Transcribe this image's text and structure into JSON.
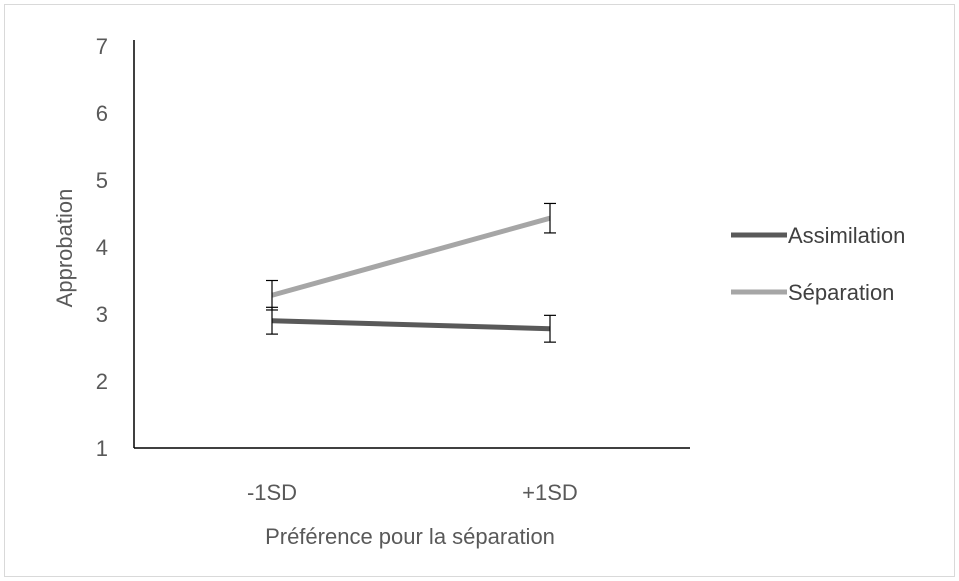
{
  "chart_data": {
    "type": "line",
    "title": "",
    "xlabel": "Préférence pour la séparation",
    "ylabel": "Approbation",
    "categories": [
      "-1SD",
      "+1SD"
    ],
    "ylim": [
      1,
      7
    ],
    "yticks": [
      "1",
      "2",
      "3",
      "4",
      "5",
      "6",
      "7"
    ],
    "grid": false,
    "legend": "right",
    "series": [
      {
        "name": "Assimilation",
        "color": "#595959",
        "values": [
          2.9,
          2.78
        ],
        "error": [
          0.2,
          0.2
        ]
      },
      {
        "name": "Séparation",
        "color": "#a6a6a6",
        "values": [
          3.28,
          4.43
        ],
        "error": [
          0.22,
          0.22
        ]
      }
    ]
  }
}
